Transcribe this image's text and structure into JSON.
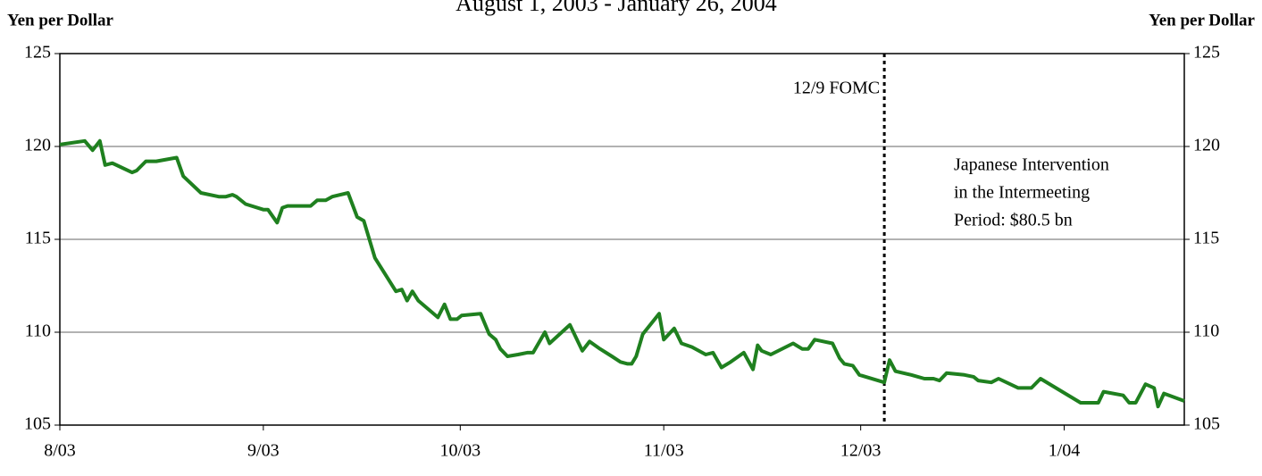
{
  "chart_data": {
    "type": "line",
    "title": "August 1, 2003 - January 26, 2004",
    "y_label": "Yen per Dollar",
    "y2_label": "Yen per Dollar",
    "x": [
      0,
      3.8,
      5.0,
      6.1,
      6.9,
      8.0,
      11.0,
      11.7,
      13.1,
      14.7,
      17.8,
      18.8,
      21.5,
      24.2,
      25.3,
      26.3,
      26.9,
      28.3,
      31.0,
      31.7,
      33.1,
      33.9,
      34.7,
      38.2,
      39.2,
      40.5,
      41.5,
      43.9,
      45.3,
      46.3,
      48.0,
      51.2,
      52.1,
      52.9,
      53.7,
      54.6,
      57.6,
      58.6,
      59.5,
      60.5,
      61.2,
      64.1,
      65.4,
      66.4,
      67.1,
      68.2,
      69.8,
      71.2,
      72.1,
      73.9,
      74.6,
      77.7,
      79.6,
      80.7,
      82.3,
      84.1,
      85.4,
      86.5,
      87.1,
      87.8,
      88.8,
      91.3,
      92.0,
      93.6,
      94.7,
      96.3,
      98.4,
      99.5,
      100.8,
      102.2,
      104.2,
      105.6,
      106.3,
      106.9,
      108.3,
      111.7,
      113.1,
      114.0,
      115.0,
      117.7,
      118.8,
      119.5,
      120.8,
      121.8,
      125.6,
      126.4,
      127.3,
      129.7,
      131.7,
      133.1,
      134.0,
      135.1,
      137.8,
      139.2,
      139.9,
      141.9,
      143.0,
      146.0,
      148.0,
      149.4,
      155.5,
      158.2,
      159.0,
      162.0,
      162.9,
      163.9,
      165.4,
      166.7,
      167.3,
      168.2,
      171.3
    ],
    "series": [
      {
        "name": "Yen per Dollar",
        "color": "#1f801f",
        "values": [
          120.1,
          120.3,
          119.8,
          120.3,
          119.0,
          119.1,
          118.6,
          118.7,
          119.2,
          119.2,
          119.4,
          118.4,
          117.5,
          117.3,
          117.3,
          117.4,
          117.3,
          116.9,
          116.6,
          116.6,
          115.9,
          116.7,
          116.8,
          116.8,
          117.1,
          117.1,
          117.3,
          117.5,
          116.2,
          116.0,
          114.0,
          112.2,
          112.3,
          111.7,
          112.2,
          111.7,
          110.8,
          111.5,
          110.7,
          110.7,
          110.9,
          111.0,
          109.9,
          109.6,
          109.1,
          108.7,
          108.8,
          108.9,
          108.9,
          110.0,
          109.4,
          110.4,
          109.0,
          109.5,
          109.1,
          108.7,
          108.4,
          108.3,
          108.3,
          108.7,
          109.9,
          111.0,
          109.6,
          110.2,
          109.4,
          109.2,
          108.8,
          108.9,
          108.1,
          108.4,
          108.9,
          108.0,
          109.3,
          109.0,
          108.8,
          109.4,
          109.1,
          109.1,
          109.6,
          109.4,
          108.6,
          108.3,
          108.2,
          107.7,
          107.3,
          108.5,
          107.9,
          107.7,
          107.5,
          107.5,
          107.4,
          107.8,
          107.7,
          107.6,
          107.4,
          107.3,
          107.5,
          107.0,
          107.0,
          107.5,
          106.2,
          106.2,
          106.8,
          106.6,
          106.2,
          106.2,
          107.2,
          107.0,
          106.0,
          106.7,
          106.3
        ]
      }
    ],
    "xlim": [
      0,
      171.3
    ],
    "xticks": [
      {
        "value": 0,
        "label": "8/03"
      },
      {
        "value": 31,
        "label": "9/03"
      },
      {
        "value": 61,
        "label": "10/03"
      },
      {
        "value": 92,
        "label": "11/03"
      },
      {
        "value": 122,
        "label": "12/03"
      },
      {
        "value": 153,
        "label": "1/04"
      }
    ],
    "ylim": [
      105,
      125
    ],
    "yticks": [
      105,
      110,
      115,
      120,
      125
    ],
    "y2lim": [
      105,
      125
    ],
    "y2ticks": [
      105,
      110,
      115,
      120,
      125
    ],
    "grid": true,
    "vline": {
      "x": 125.6,
      "label": "12/9 FOMC"
    },
    "annotation": [
      "Japanese Intervention",
      "in the Intermeeting",
      "Period: $80.5 bn"
    ]
  }
}
